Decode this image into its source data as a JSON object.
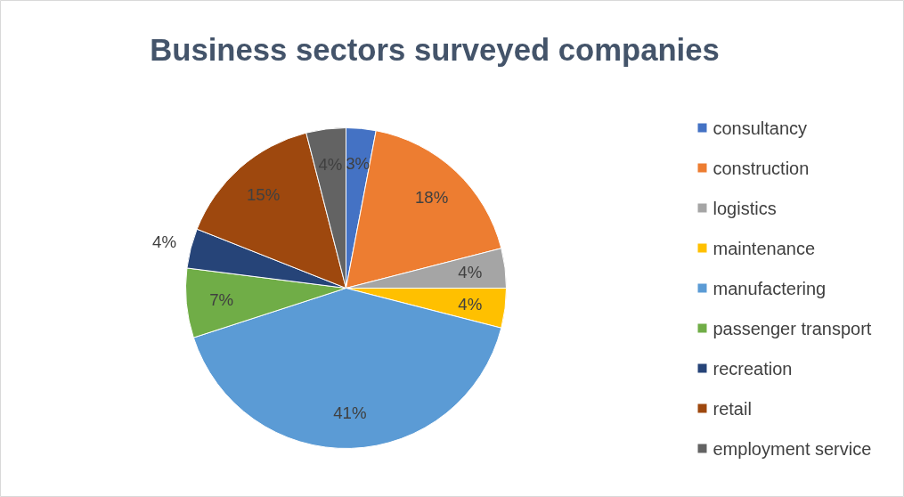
{
  "chart_data": {
    "type": "pie",
    "title": "Business sectors surveyed companies",
    "legend": "right",
    "value_labels": [
      "3%",
      "18%",
      "4%",
      "4%",
      "41%",
      "7%",
      "4%",
      "15%",
      "4%"
    ],
    "categories": [
      "consultancy",
      "construction",
      "logistics",
      "maintenance",
      "manufactering",
      "passenger transport",
      "recreation",
      "retail",
      "employment service"
    ],
    "values": [
      3,
      18,
      4,
      4,
      41,
      7,
      4,
      15,
      4
    ],
    "colors": [
      "#4472c4",
      "#ed7d31",
      "#a5a5a5",
      "#ffc000",
      "#5b9bd5",
      "#70ad47",
      "#264478",
      "#9e480e",
      "#636363"
    ]
  }
}
